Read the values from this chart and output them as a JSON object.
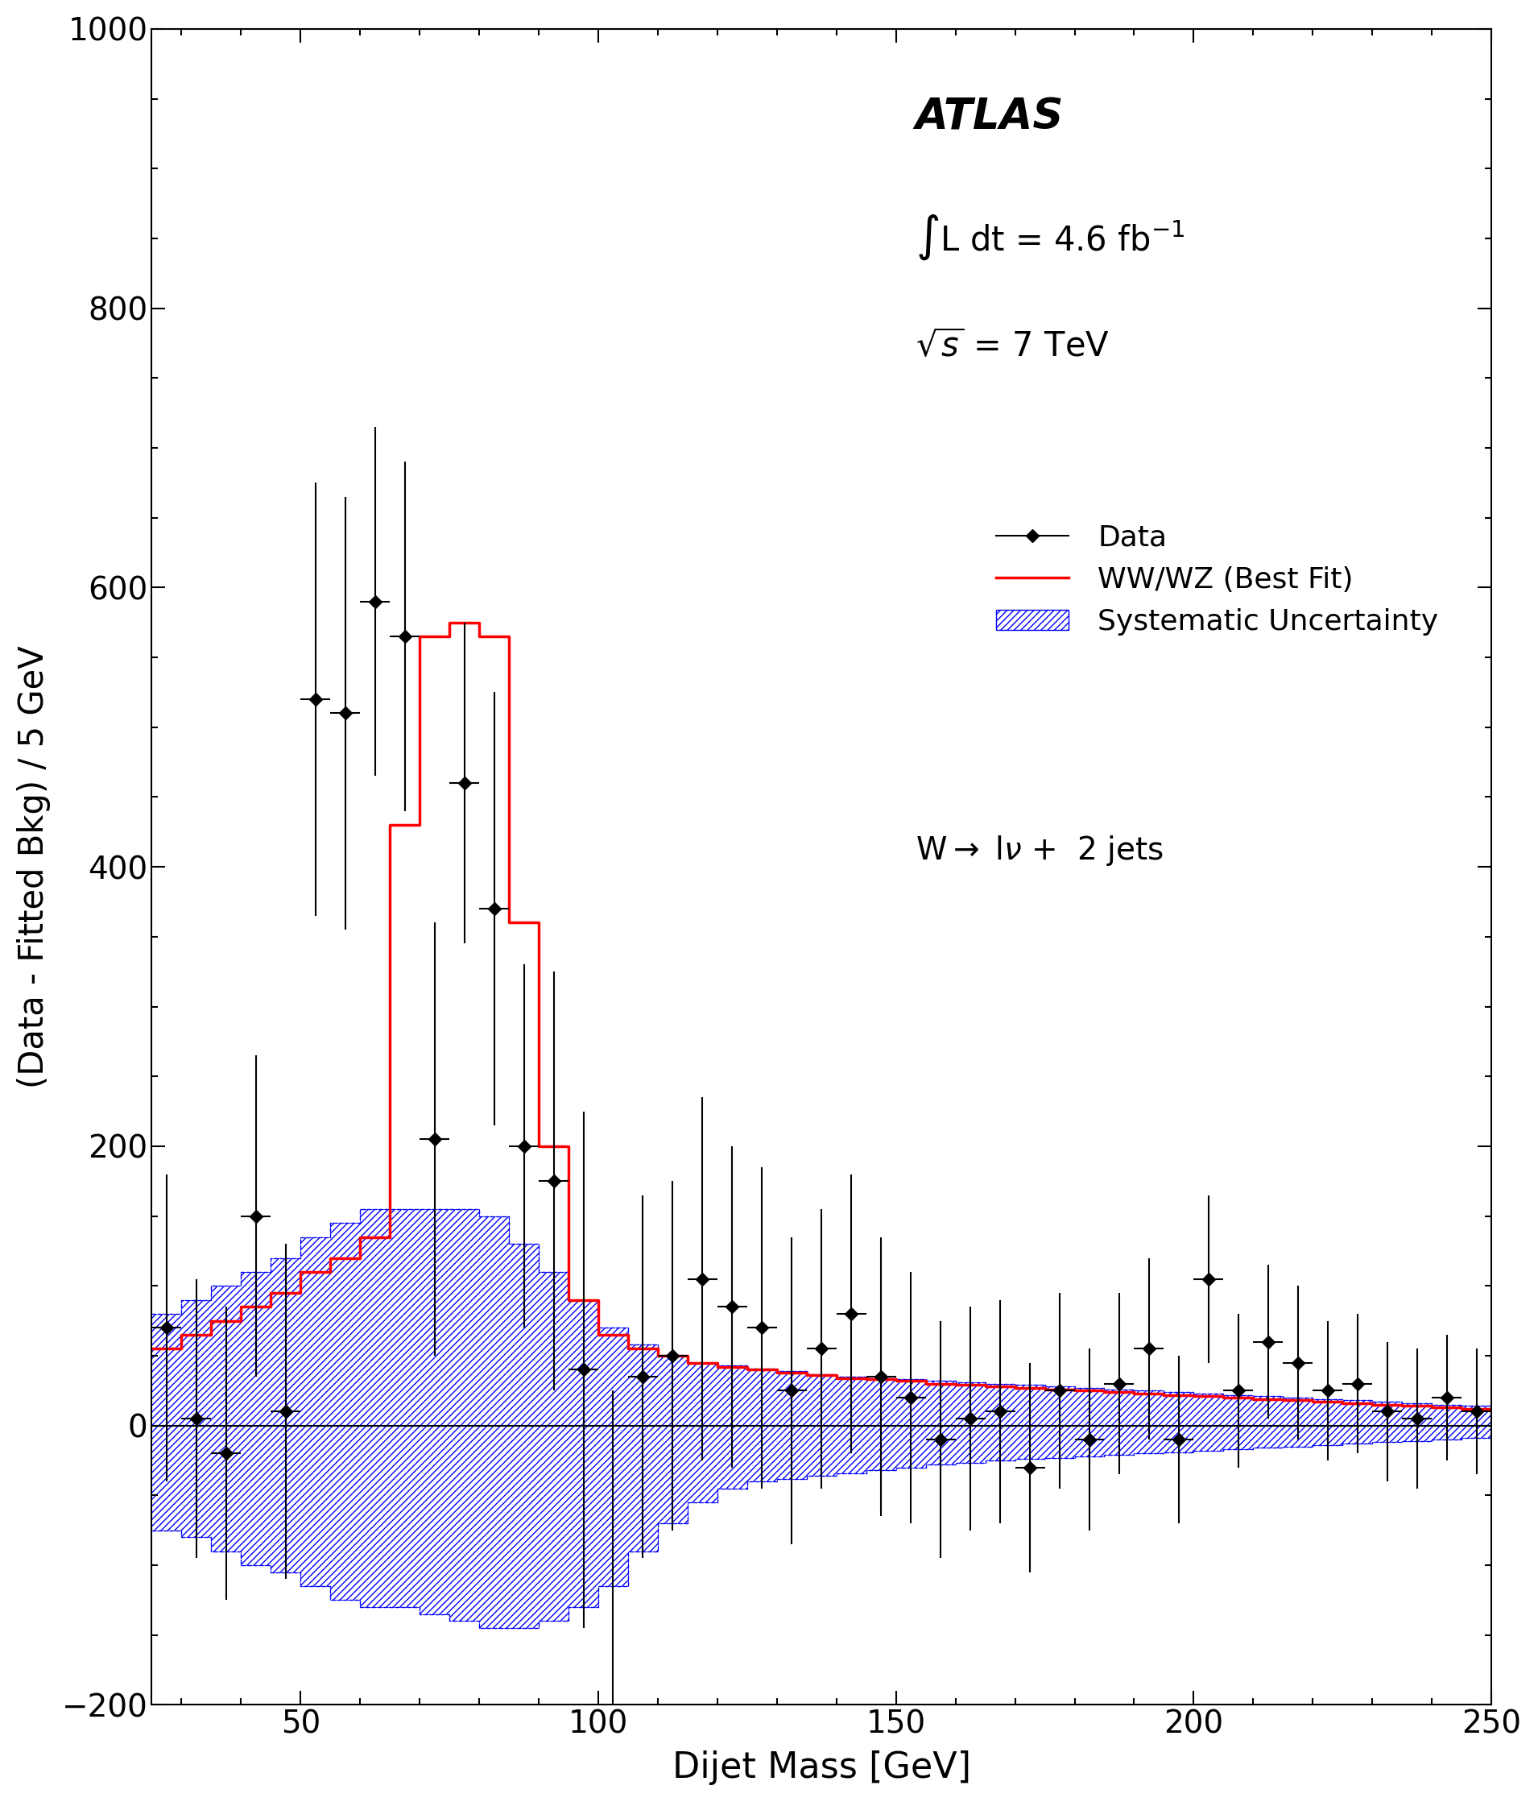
{
  "data_x": [
    27.5,
    32.5,
    37.5,
    42.5,
    47.5,
    52.5,
    57.5,
    62.5,
    67.5,
    72.5,
    77.5,
    82.5,
    87.5,
    92.5,
    97.5,
    102.5,
    107.5,
    112.5,
    117.5,
    122.5,
    127.5,
    132.5,
    137.5,
    142.5,
    147.5,
    152.5,
    157.5,
    162.5,
    167.5,
    172.5,
    177.5,
    182.5,
    187.5,
    192.5,
    197.5,
    202.5,
    207.5,
    212.5,
    217.5,
    222.5,
    227.5,
    232.5,
    237.5,
    242.5,
    247.5
  ],
  "data_y": [
    70,
    5,
    -20,
    150,
    10,
    520,
    510,
    590,
    565,
    205,
    460,
    370,
    200,
    175,
    40,
    -230,
    35,
    50,
    105,
    85,
    70,
    25,
    55,
    80,
    35,
    20,
    -10,
    5,
    10,
    -30,
    25,
    -10,
    30,
    55,
    -10,
    105,
    25,
    60,
    45,
    25,
    30,
    10,
    5,
    20,
    10
  ],
  "data_yerr_lo": [
    110,
    100,
    105,
    115,
    120,
    155,
    155,
    125,
    125,
    155,
    115,
    155,
    130,
    150,
    185,
    255,
    130,
    125,
    130,
    115,
    115,
    110,
    100,
    100,
    100,
    90,
    85,
    80,
    80,
    75,
    70,
    65,
    65,
    65,
    60,
    60,
    55,
    55,
    55,
    50,
    50,
    50,
    50,
    45,
    45
  ],
  "data_yerr_hi": [
    110,
    100,
    105,
    115,
    120,
    155,
    155,
    125,
    125,
    155,
    115,
    155,
    130,
    150,
    185,
    255,
    130,
    125,
    130,
    115,
    115,
    110,
    100,
    100,
    100,
    90,
    85,
    80,
    80,
    75,
    70,
    65,
    65,
    65,
    60,
    60,
    55,
    55,
    55,
    50,
    50,
    50,
    50,
    45,
    45
  ],
  "fit_x": [
    25,
    30,
    35,
    40,
    45,
    50,
    55,
    60,
    65,
    70,
    75,
    80,
    85,
    90,
    95,
    100,
    105,
    110,
    115,
    120,
    125,
    130,
    135,
    140,
    145,
    150,
    155,
    160,
    165,
    170,
    175,
    180,
    185,
    190,
    195,
    200,
    205,
    210,
    215,
    220,
    225,
    230,
    235,
    240,
    245,
    250
  ],
  "fit_y": [
    55,
    65,
    75,
    85,
    95,
    110,
    120,
    135,
    430,
    565,
    575,
    565,
    360,
    200,
    90,
    65,
    55,
    50,
    45,
    42,
    40,
    38,
    36,
    34,
    33,
    32,
    30,
    29,
    28,
    27,
    26,
    25,
    24,
    23,
    22,
    21,
    20,
    19,
    18,
    17,
    16,
    15,
    14,
    13,
    12,
    10
  ],
  "syst_x": [
    25,
    30,
    35,
    40,
    45,
    50,
    55,
    60,
    65,
    70,
    75,
    80,
    85,
    90,
    95,
    100,
    105,
    110,
    115,
    120,
    125,
    130,
    135,
    140,
    145,
    150,
    155,
    160,
    165,
    170,
    175,
    180,
    185,
    190,
    195,
    200,
    205,
    210,
    215,
    220,
    225,
    230,
    235,
    240,
    245,
    250
  ],
  "syst_hi": [
    80,
    90,
    100,
    110,
    120,
    135,
    145,
    155,
    155,
    155,
    155,
    150,
    130,
    110,
    90,
    70,
    58,
    50,
    45,
    43,
    41,
    39,
    37,
    35,
    34,
    33,
    32,
    31,
    30,
    29,
    28,
    27,
    26,
    25,
    24,
    23,
    22,
    21,
    20,
    19,
    18,
    17,
    16,
    15,
    14,
    12
  ],
  "syst_lo": [
    -75,
    -80,
    -90,
    -100,
    -105,
    -115,
    -125,
    -130,
    -130,
    -135,
    -140,
    -145,
    -145,
    -140,
    -130,
    -115,
    -90,
    -70,
    -55,
    -45,
    -40,
    -38,
    -36,
    -34,
    -32,
    -30,
    -28,
    -27,
    -25,
    -24,
    -23,
    -22,
    -21,
    -20,
    -19,
    -18,
    -17,
    -16,
    -15,
    -14,
    -13,
    -12,
    -11,
    -10,
    -9,
    -8
  ],
  "xlim": [
    25,
    250
  ],
  "ylim": [
    -200,
    1000
  ],
  "xlabel": "Dijet Mass [GeV]",
  "ylabel": "(Data - Fitted Bkg) / 5 GeV",
  "fit_color": "#ff0000",
  "syst_color": "#0000ff",
  "data_color": "#000000",
  "background_color": "#ffffff"
}
